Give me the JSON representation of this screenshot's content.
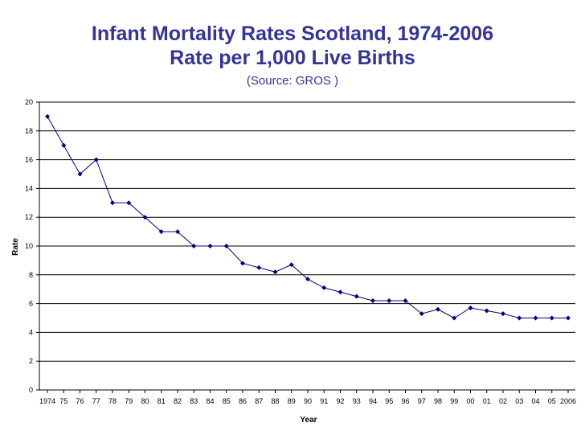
{
  "colors": {
    "title": "#333399",
    "line": "#000080",
    "grid": "#000000",
    "axis": "#000000"
  },
  "chart_data": {
    "type": "line",
    "title": "Infant Mortality Rates Scotland, 1974-2006",
    "subtitle": "Rate per 1,000 Live Births",
    "source": "(Source: GROS )",
    "xlabel": "Year",
    "ylabel": "Rate",
    "ylim": [
      0,
      20
    ],
    "ytick_step": 2,
    "grid": true,
    "categories": [
      "1974",
      "75",
      "76",
      "77",
      "78",
      "79",
      "80",
      "81",
      "82",
      "83",
      "84",
      "85",
      "86",
      "87",
      "88",
      "89",
      "90",
      "91",
      "92",
      "93",
      "94",
      "95",
      "96",
      "97",
      "98",
      "99",
      "00",
      "01",
      "02",
      "03",
      "04",
      "05",
      "2006"
    ],
    "series": [
      {
        "name": "Rate",
        "values": [
          19,
          17,
          15,
          16,
          13,
          13,
          12,
          11,
          11,
          10,
          10,
          10,
          8.8,
          8.5,
          8.2,
          8.7,
          7.7,
          7.1,
          6.8,
          6.5,
          6.2,
          6.2,
          6.2,
          5.3,
          5.6,
          5.0,
          5.7,
          5.5,
          5.3,
          5.0,
          5.0,
          5.0,
          5.0
        ]
      }
    ]
  }
}
